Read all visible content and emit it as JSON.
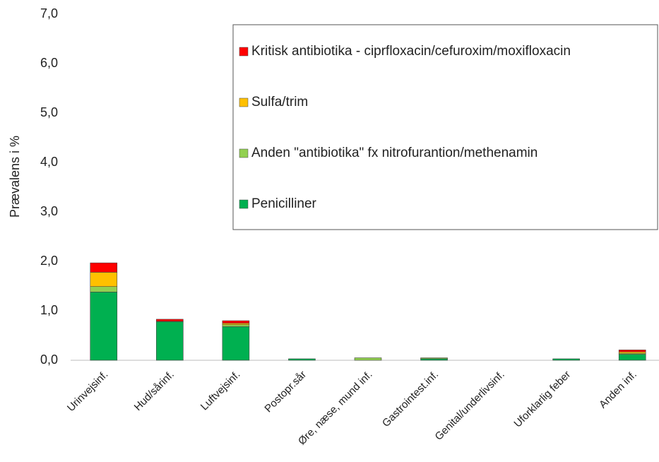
{
  "chart_data": {
    "type": "stacked_bar",
    "ylabel": "Prævalens i %",
    "categories": [
      "Urinvejsinf.",
      "Hud/sårinf.",
      "Luftvejsinf.",
      "Postopr.sår",
      "Øre, næse, mund inf.",
      "Gastrointest.inf.",
      "Genital/underlivsinf.",
      "Uforklarlig feber",
      "Anden inf."
    ],
    "series": [
      {
        "name": "Penicilliner",
        "color": "#00b050",
        "values": [
          1.38,
          0.78,
          0.68,
          0.03,
          0,
          0.03,
          0,
          0.03,
          0.12
        ]
      },
      {
        "name": "Anden \"antibiotika\" fx nitrofurantion/methenamin",
        "color": "#92d050",
        "values": [
          0.11,
          0,
          0.04,
          0,
          0.05,
          0.02,
          0,
          0,
          0.02
        ]
      },
      {
        "name": "Sulfa/trim",
        "color": "#ffc000",
        "values": [
          0.29,
          0.01,
          0.03,
          0,
          0,
          0,
          0,
          0,
          0.03
        ]
      },
      {
        "name": "Kritisk antibiotika - ciprfloxacin/cefuroxim/moxifloxacin",
        "color": "#ff0000",
        "values": [
          0.19,
          0.04,
          0.05,
          0,
          0,
          0,
          0,
          0,
          0.04
        ]
      }
    ],
    "ylim": [
      0,
      7
    ],
    "yticks": [
      {
        "value": 0,
        "label": "0,0"
      },
      {
        "value": 1,
        "label": "1,0"
      },
      {
        "value": 2,
        "label": "2,0"
      },
      {
        "value": 3,
        "label": "3,0"
      },
      {
        "value": 4,
        "label": "4,0"
      },
      {
        "value": 5,
        "label": "5,0"
      },
      {
        "value": 6,
        "label": "6,0"
      },
      {
        "value": 7,
        "label": "7,0"
      }
    ],
    "grid": false,
    "legend": "upper right"
  }
}
